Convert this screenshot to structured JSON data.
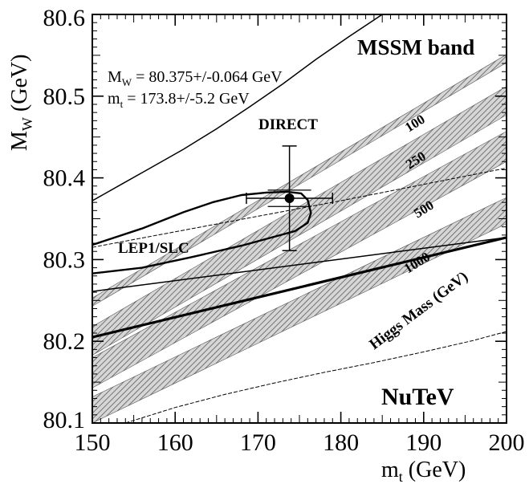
{
  "chart_data": {
    "type": "line",
    "title": "",
    "xlabel": "m",
    "xlabel_sub": "t",
    "xlabel_unit": " (GeV)",
    "ylabel": "M",
    "ylabel_sub": "W",
    "ylabel_unit": " (GeV)",
    "xlim": [
      150,
      200
    ],
    "ylim": [
      80.1,
      80.6
    ],
    "x_ticks": [
      "150",
      "160",
      "170",
      "180",
      "190",
      "200"
    ],
    "y_ticks": [
      "80.1",
      "80.2",
      "80.3",
      "80.4",
      "80.5",
      "80.6"
    ],
    "x_tick_values": [
      150,
      160,
      170,
      180,
      190,
      200
    ],
    "y_tick_values": [
      80.1,
      80.2,
      80.3,
      80.4,
      80.5,
      80.6
    ],
    "grid": false,
    "measurements": {
      "mw": {
        "prefix": "M",
        "sub": "W",
        "text": " = 80.375+/-0.064 GeV"
      },
      "mt": {
        "prefix": "m",
        "sub": "t",
        "text": " = 173.8+/-5.2 GeV"
      }
    },
    "direct_point": {
      "label": "DIRECT",
      "x": 173.8,
      "y": 80.375,
      "x_err_small": 5.2,
      "y_err_small": 0.01,
      "x_err_cap": 0.7,
      "y_err_big": 0.064
    },
    "higgs_bands": [
      {
        "label": "100",
        "x": [
          150,
          200
        ],
        "y_low": [
          80.243,
          80.541
        ],
        "y_high": [
          80.253,
          80.551
        ]
      },
      {
        "label": "250",
        "x": [
          150,
          200
        ],
        "y_low": [
          80.183,
          80.477
        ],
        "y_high": [
          80.218,
          80.512
        ]
      },
      {
        "label": "500",
        "x": [
          150,
          200
        ],
        "y_low": [
          80.143,
          80.42
        ],
        "y_high": [
          80.18,
          80.457
        ]
      },
      {
        "label": "1000",
        "x": [
          150,
          200
        ],
        "y_low": [
          80.1,
          80.344
        ],
        "y_high": [
          80.132,
          80.376
        ]
      }
    ],
    "higgs_axis_label": "Higgs Mass (GeV)",
    "mssm": {
      "label": "MSSM band",
      "upper_x": [
        150.0,
        153.5,
        157.0,
        161.0,
        165.0,
        169.0,
        173.0,
        177.0,
        181.0,
        185.0,
        188.3
      ],
      "upper_y": [
        80.372,
        80.392,
        80.412,
        80.435,
        80.46,
        80.487,
        80.515,
        80.545,
        80.573,
        80.6,
        80.625
      ],
      "lower_x": [
        150.0,
        200.0
      ],
      "lower_y": [
        80.261,
        80.327
      ]
    },
    "lep_contour": {
      "label": "LEP1/SLC",
      "x": [
        150.0,
        156.0,
        161.0,
        164.5,
        168.0,
        171.0,
        173.5,
        175.2,
        176.0,
        176.4,
        176.0,
        174.5,
        172.0,
        168.0,
        162.0,
        156.0,
        150.0
      ],
      "y": [
        80.318,
        80.338,
        80.358,
        80.37,
        80.379,
        80.382,
        80.383,
        80.381,
        80.373,
        80.357,
        80.345,
        80.335,
        80.328,
        80.317,
        80.303,
        80.29,
        80.283
      ]
    },
    "nutev": {
      "label": "NuTeV",
      "lower_x": [
        154.0,
        160.0,
        166.0,
        172.0,
        178.0,
        184.0,
        190.0,
        196.0,
        200.0
      ],
      "lower_y": [
        80.1,
        80.119,
        80.135,
        80.149,
        80.162,
        80.174,
        80.187,
        80.201,
        80.212
      ],
      "upper_x": [
        150.0,
        160.0,
        170.0,
        180.0,
        190.0,
        200.0
      ],
      "upper_y": [
        80.315,
        80.334,
        80.353,
        80.372,
        80.392,
        80.412
      ]
    },
    "tree_level_line": {
      "x": [
        150.0,
        200.0
      ],
      "y": [
        80.205,
        80.327
      ]
    },
    "colors": {
      "axis": "#000000",
      "band_fill": "#d6d6d6",
      "band_hatch": "#5a5a5a",
      "background": "#ffffff"
    }
  }
}
